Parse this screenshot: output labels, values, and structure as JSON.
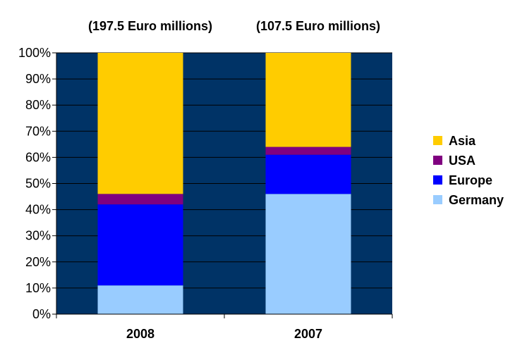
{
  "chart_data": {
    "type": "bar",
    "stacked": "percent",
    "categories": [
      "2008",
      "2007"
    ],
    "series": [
      {
        "name": "Germany",
        "values": [
          11,
          46
        ],
        "color": "#99ccff"
      },
      {
        "name": "Europe",
        "values": [
          31,
          15
        ],
        "color": "#0000ff"
      },
      {
        "name": "USA",
        "values": [
          4,
          3
        ],
        "color": "#800080"
      },
      {
        "name": "Asia",
        "values": [
          54,
          36
        ],
        "color": "#ffcc00"
      }
    ],
    "annotations": [
      "(197.5 Euro millions)",
      "(107.5 Euro millions)"
    ],
    "yticks": [
      "0%",
      "10%",
      "20%",
      "30%",
      "40%",
      "50%",
      "60%",
      "70%",
      "80%",
      "90%",
      "100%"
    ],
    "ylim": [
      0,
      100
    ],
    "legend": [
      "Asia",
      "USA",
      "Europe",
      "Germany"
    ],
    "legend_position": "right",
    "plot_background": "#003366",
    "grid": true
  }
}
